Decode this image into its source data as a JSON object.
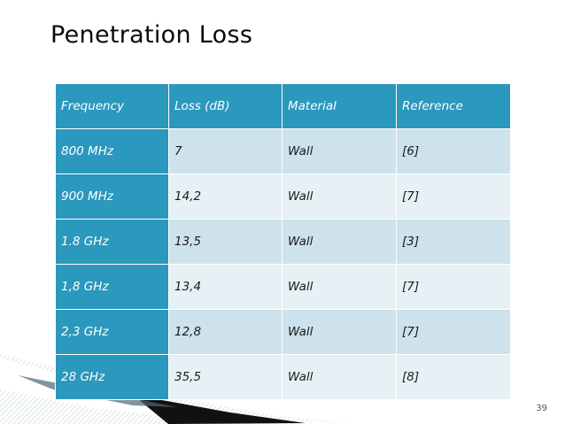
{
  "slide": {
    "title": "Penetration Loss",
    "page_number": "39"
  },
  "table": {
    "headers": [
      "Frequency",
      "Loss (dB)",
      "Material",
      "Reference"
    ],
    "rows": [
      [
        "800 MHz",
        "7",
        "Wall",
        "[6]"
      ],
      [
        "900 MHz",
        "14,2",
        "Wall",
        "[7]"
      ],
      [
        "1.8 GHz",
        "13,5",
        "Wall",
        "[3]"
      ],
      [
        "1,8 GHz",
        "13,4",
        "Wall",
        "[7]"
      ],
      [
        "2,3 GHz",
        "12,8",
        "Wall",
        "[7]"
      ],
      [
        "28 GHz",
        "35,5",
        "Wall",
        "[8]"
      ]
    ]
  },
  "colors": {
    "header_bg": "#2b98bd",
    "row_odd_bg": "#cde2ea",
    "row_even_bg": "#e7f1f5"
  }
}
